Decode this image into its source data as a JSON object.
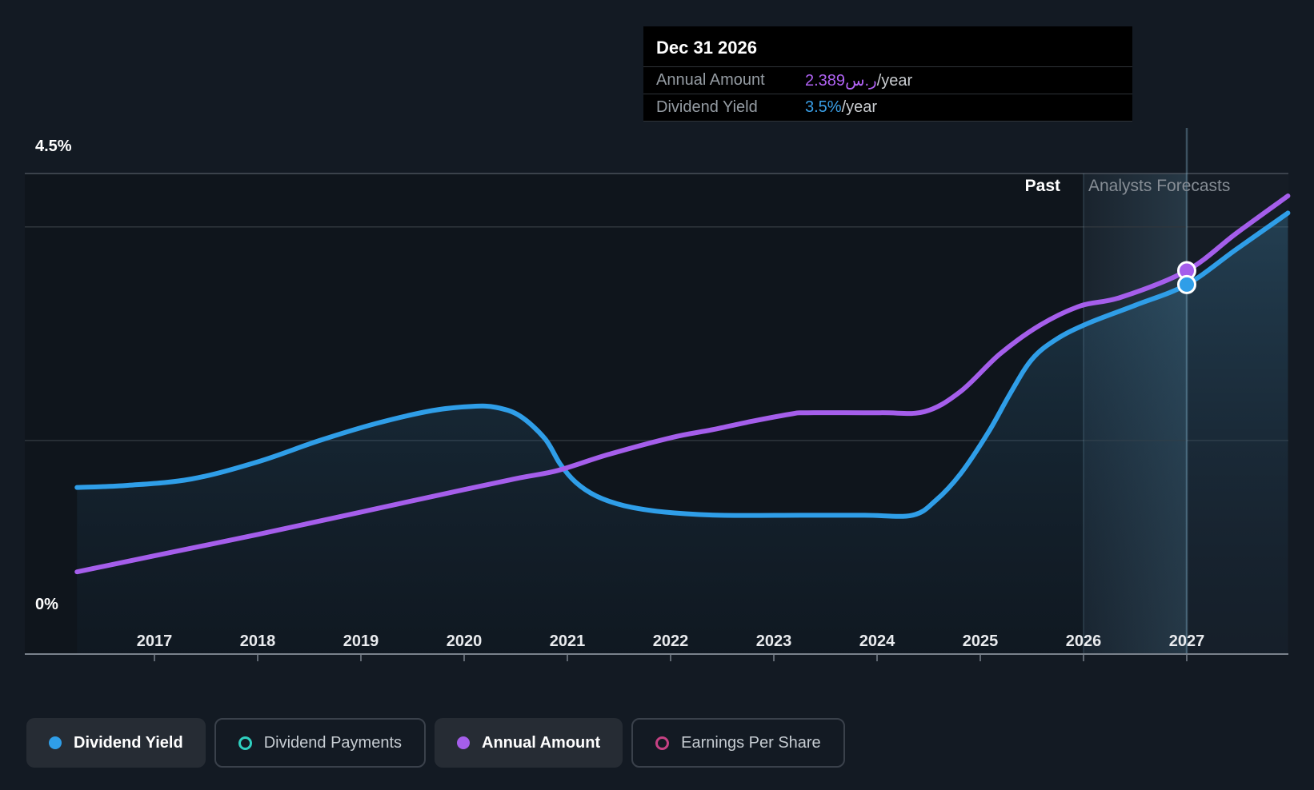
{
  "tooltip": {
    "date": "Dec 31 2026",
    "rows": [
      {
        "label": "Annual Amount",
        "value": "2.389ر.س",
        "suffix": "/year",
        "color": "#b163f5"
      },
      {
        "label": "Dividend Yield",
        "value": "3.5%",
        "suffix": "/year",
        "color": "#3aa0e8"
      }
    ]
  },
  "y_axis": {
    "top_label": "4.5%",
    "bottom_label": "0%"
  },
  "x_axis": {
    "years": [
      "2017",
      "2018",
      "2019",
      "2020",
      "2021",
      "2022",
      "2023",
      "2024",
      "2025",
      "2026",
      "2027"
    ]
  },
  "sections": {
    "past_label": "Past",
    "forecast_label": "Analysts Forecasts"
  },
  "legend": {
    "items": [
      {
        "label": "Dividend Yield",
        "color": "#2f9ee8",
        "style": "dot",
        "active": true
      },
      {
        "label": "Dividend Payments",
        "color": "#2fd0c0",
        "style": "ring",
        "active": false
      },
      {
        "label": "Annual Amount",
        "color": "#a55eeb",
        "style": "dot",
        "active": true
      },
      {
        "label": "Earnings Per Share",
        "color": "#c64183",
        "style": "ring",
        "active": false
      }
    ]
  },
  "chart_data": {
    "type": "line",
    "title": "Dividend history and forecast",
    "xlim": [
      2015.74,
      2027.98
    ],
    "ylim": [
      0,
      4.5
    ],
    "x_ticks": [
      2017,
      2018,
      2019,
      2020,
      2021,
      2022,
      2023,
      2024,
      2025,
      2026,
      2027
    ],
    "gridlines_pct": [
      4.5,
      4.0,
      2.0,
      0
    ],
    "labeled_gridlines": {
      "4.5": "4.5%",
      "0": "0%"
    },
    "past_forecast_divider_x": 2026.0,
    "crosshair_x": 2027.0,
    "legend_position": "bottom",
    "series": [
      {
        "name": "Dividend Yield",
        "color": "#2f9ee8",
        "unit": "% per year",
        "area_fill": true,
        "points": [
          [
            2016.25,
            1.56
          ],
          [
            2016.74,
            1.58
          ],
          [
            2017.36,
            1.64
          ],
          [
            2018.0,
            1.8
          ],
          [
            2018.6,
            2.0
          ],
          [
            2019.15,
            2.16
          ],
          [
            2019.69,
            2.28
          ],
          [
            2020.08,
            2.32
          ],
          [
            2020.31,
            2.31
          ],
          [
            2020.54,
            2.23
          ],
          [
            2020.78,
            2.02
          ],
          [
            2020.93,
            1.78
          ],
          [
            2021.08,
            1.61
          ],
          [
            2021.28,
            1.48
          ],
          [
            2021.55,
            1.39
          ],
          [
            2021.94,
            1.33
          ],
          [
            2022.48,
            1.3
          ],
          [
            2023.26,
            1.3
          ],
          [
            2023.88,
            1.3
          ],
          [
            2024.34,
            1.3
          ],
          [
            2024.57,
            1.44
          ],
          [
            2024.81,
            1.69
          ],
          [
            2025.08,
            2.08
          ],
          [
            2025.29,
            2.44
          ],
          [
            2025.5,
            2.76
          ],
          [
            2025.74,
            2.95
          ],
          [
            2026.05,
            3.1
          ],
          [
            2026.51,
            3.27
          ],
          [
            2027.0,
            3.46
          ],
          [
            2027.48,
            3.79
          ],
          [
            2027.98,
            4.13
          ]
        ],
        "marker": {
          "x": 2027.0,
          "y": 3.46,
          "display": "3.5%/year at Dec 31 2026"
        }
      },
      {
        "name": "Annual Amount",
        "color": "#a55eeb",
        "unit": "ر.س per year (overlaid on % axis)",
        "area_fill": false,
        "points": [
          [
            2016.25,
            0.77
          ],
          [
            2017.0,
            0.92
          ],
          [
            2018.0,
            1.12
          ],
          [
            2019.0,
            1.33
          ],
          [
            2020.0,
            1.54
          ],
          [
            2020.54,
            1.65
          ],
          [
            2020.91,
            1.72
          ],
          [
            2021.4,
            1.87
          ],
          [
            2022.02,
            2.03
          ],
          [
            2022.4,
            2.1
          ],
          [
            2022.79,
            2.18
          ],
          [
            2023.18,
            2.25
          ],
          [
            2023.33,
            2.26
          ],
          [
            2024.03,
            2.26
          ],
          [
            2024.46,
            2.27
          ],
          [
            2024.81,
            2.46
          ],
          [
            2025.19,
            2.81
          ],
          [
            2025.58,
            3.08
          ],
          [
            2025.97,
            3.26
          ],
          [
            2026.36,
            3.34
          ],
          [
            2027.0,
            3.59
          ],
          [
            2027.48,
            3.94
          ],
          [
            2027.98,
            4.29
          ]
        ],
        "marker": {
          "x": 2027.0,
          "y": 3.59,
          "display": "2.389ر.س/year at Dec 31 2026"
        }
      }
    ],
    "inactive_series": [
      "Dividend Payments",
      "Earnings Per Share"
    ]
  },
  "colors": {
    "page_bg": "#131a23",
    "tooltip_bg": "#000000",
    "grid_strong": "#49505a",
    "grid_faint": "#2f363d",
    "axis_line": "#7a828c",
    "forecast_tint": "rgba(130,180,210,0.05)",
    "highlight_band": "rgba(110,170,200,0.20)"
  }
}
